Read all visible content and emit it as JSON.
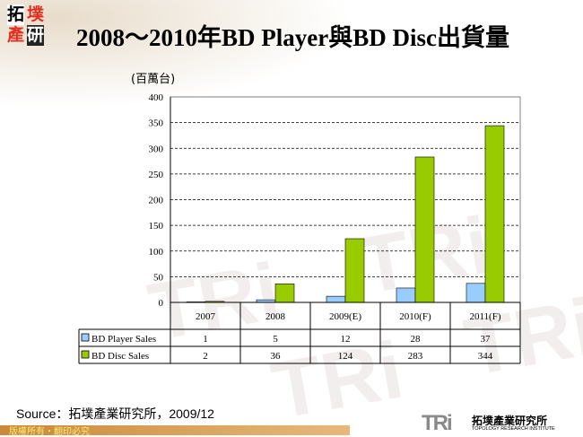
{
  "logo": {
    "chars": [
      "拓",
      "墣",
      "產",
      "研"
    ]
  },
  "title": "2008～2010年BD Player與BD Disc出貨量",
  "unit_label": "(百萬台)",
  "chart_data": {
    "type": "bar",
    "title": "2008～2010年BD Player與BD Disc出貨量",
    "ylabel": "(百萬台)",
    "ylim": [
      0,
      400
    ],
    "yticks": [
      0,
      50,
      100,
      150,
      200,
      250,
      300,
      350,
      400
    ],
    "grid": true,
    "categories": [
      "2007",
      "2008",
      "2009(E)",
      "2010(F)",
      "2011(F)"
    ],
    "series": [
      {
        "name": "BD Player Sales",
        "values": [
          1,
          5,
          12,
          28,
          37
        ],
        "color": "#99ccff"
      },
      {
        "name": "BD Disc Sales",
        "values": [
          2,
          36,
          124,
          283,
          344
        ],
        "color": "#99cc00"
      }
    ],
    "legend": "data-table"
  },
  "source": "Source：拓墣產業研究所，2009/12",
  "footer": "版權所有・翻印必究",
  "brand": {
    "mark": "TRi",
    "name_cn": "拓墣產業研究所",
    "name_en": "TOPOLOGY RESEARCH INSTITUTE"
  }
}
